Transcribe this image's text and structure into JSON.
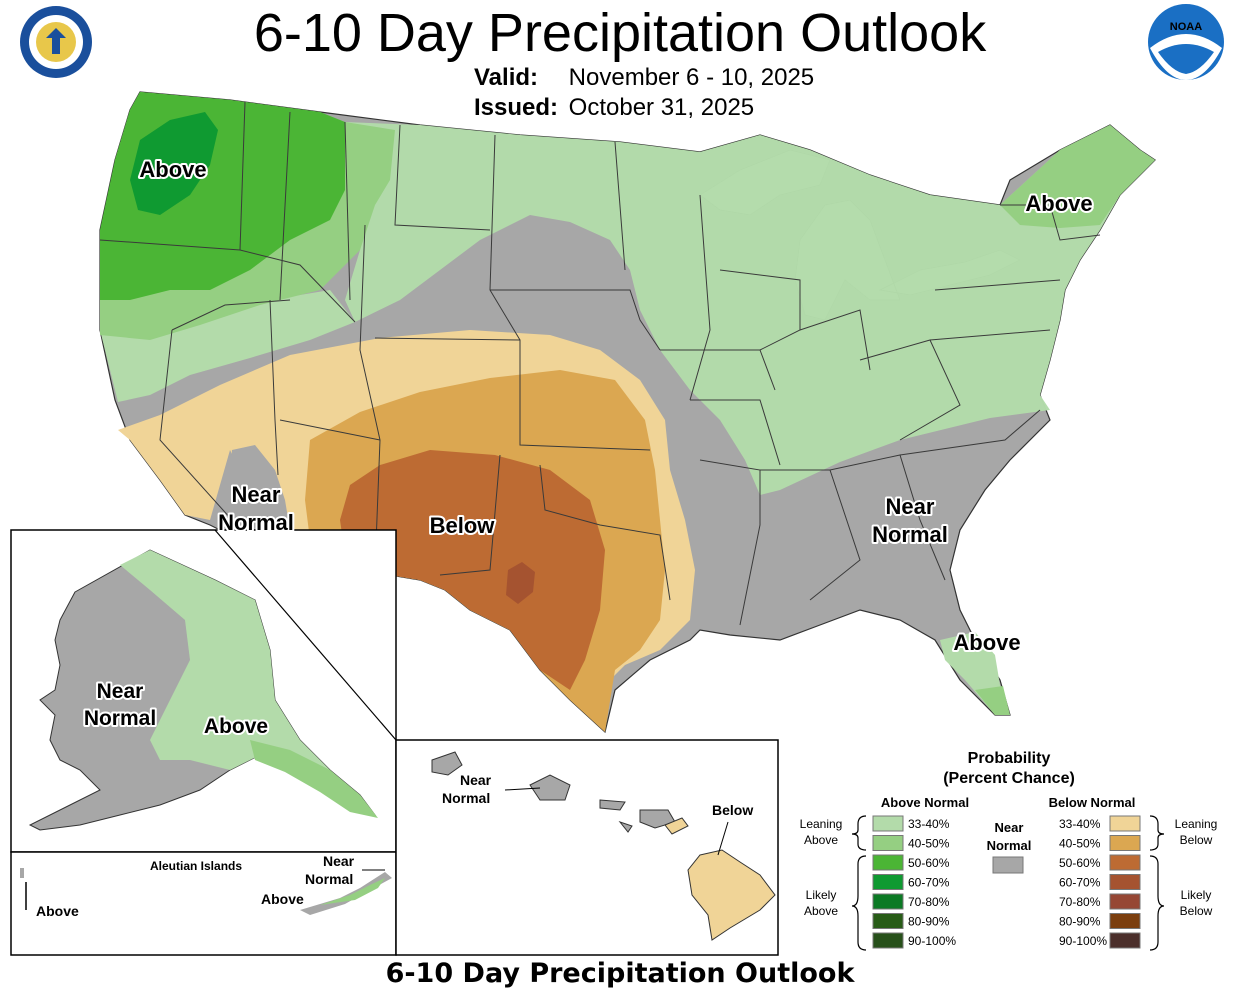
{
  "title": "6-10 Day Precipitation Outlook",
  "valid_label": "Valid:",
  "valid_value": "November 6 - 10, 2025",
  "issued_label": "Issued:",
  "issued_value": "October 31, 2025",
  "footer_title": "6-10 Day Precipitation Outlook",
  "logos": {
    "left": "department-of-commerce-seal",
    "right_text": "NOAA"
  },
  "region_labels": {
    "northwest": "Above",
    "northeast": "Above",
    "southwest": [
      "Near",
      "Normal"
    ],
    "south_central": "Below",
    "southeast": [
      "Near",
      "Normal"
    ],
    "florida": "Above",
    "alaska_main": [
      "Near",
      "Normal"
    ],
    "alaska_south": "Above",
    "aleutian_title": "Aleutian Islands",
    "aleutian_above_left": "Above",
    "aleutian_above_right": "Above",
    "aleutian_near": [
      "Near",
      "Normal"
    ],
    "hawaii_near": [
      "Near",
      "Normal"
    ],
    "hawaii_below": "Below"
  },
  "legend": {
    "title": [
      "Probability",
      "(Percent Chance)"
    ],
    "above_header": "Above Normal",
    "below_header": "Below Normal",
    "near_header": [
      "Near",
      "Normal"
    ],
    "leaning_above": [
      "Leaning",
      "Above"
    ],
    "likely_above": [
      "Likely",
      "Above"
    ],
    "leaning_below": [
      "Leaning",
      "Below"
    ],
    "likely_below": [
      "Likely",
      "Below"
    ],
    "near_color": "#a7a7a7",
    "above": [
      {
        "label": "33-40%",
        "color": "#b3dbaa"
      },
      {
        "label": "40-50%",
        "color": "#95cf82"
      },
      {
        "label": "50-60%",
        "color": "#4bb535"
      },
      {
        "label": "60-70%",
        "color": "#0f9a31"
      },
      {
        "label": "70-80%",
        "color": "#0b7a24"
      },
      {
        "label": "80-90%",
        "color": "#285c17"
      },
      {
        "label": "90-100%",
        "color": "#27501a"
      }
    ],
    "below": [
      {
        "label": "33-40%",
        "color": "#f0d497"
      },
      {
        "label": "40-50%",
        "color": "#dba751"
      },
      {
        "label": "50-60%",
        "color": "#bd6b33"
      },
      {
        "label": "60-70%",
        "color": "#a55330"
      },
      {
        "label": "70-80%",
        "color": "#964734"
      },
      {
        "label": "80-90%",
        "color": "#7b3e0e"
      },
      {
        "label": "90-100%",
        "color": "#4b2f2b"
      }
    ]
  }
}
